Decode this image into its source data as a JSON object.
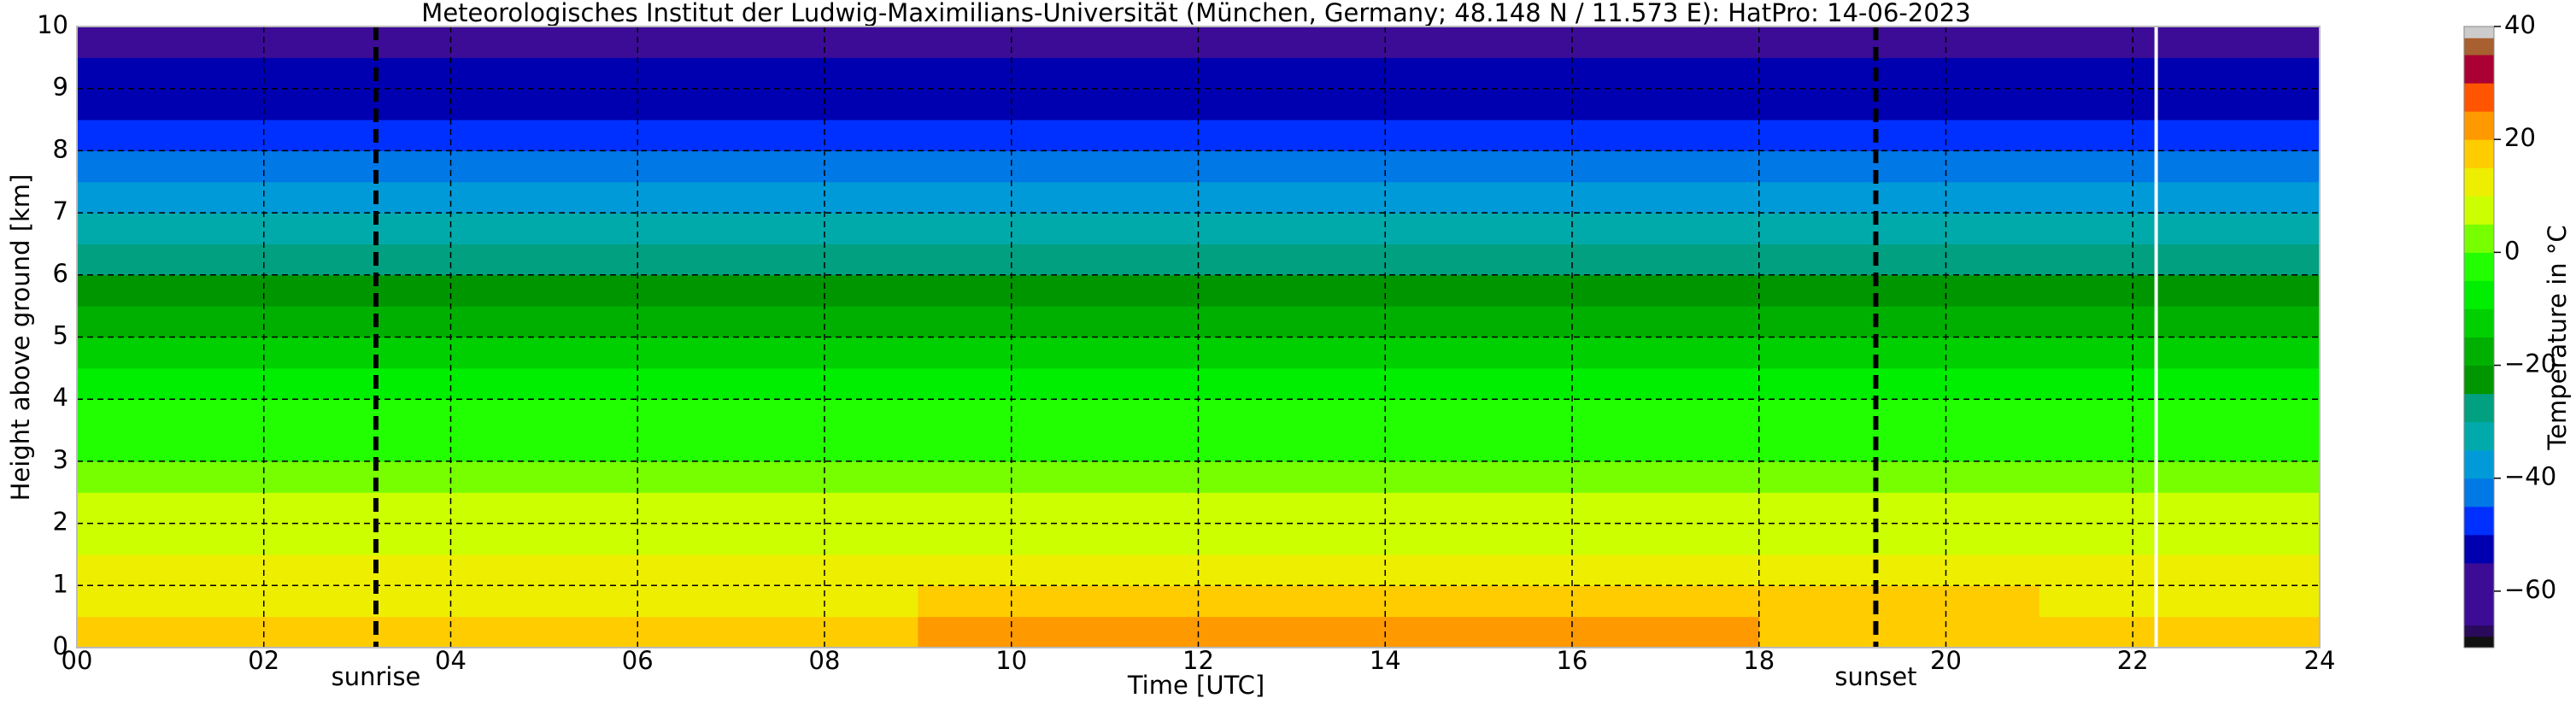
{
  "chart_data": {
    "type": "heatmap",
    "title": "Meteorologisches Institut der Ludwig-Maximilians-Universität (München, Germany; 48.148 N / 11.573 E):    HatPro: 14-06-2023",
    "x_label": "Time [UTC]",
    "y_label": "Height above ground [km]",
    "colorbar_label": "Temperature in °C",
    "x_edges": [
      0,
      3,
      6,
      9,
      12,
      15,
      18,
      21,
      24
    ],
    "y_edges": [
      0,
      0.5,
      1,
      1.5,
      2,
      2.5,
      3,
      3.5,
      4,
      4.5,
      5,
      5.5,
      6,
      6.5,
      7,
      7.5,
      8,
      8.5,
      9,
      9.5,
      10
    ],
    "values": [
      [
        15,
        15,
        17,
        20,
        21,
        21,
        18,
        16
      ],
      [
        13,
        13,
        14,
        15,
        16,
        16,
        15,
        14
      ],
      [
        10,
        10,
        11,
        12,
        12,
        12,
        12,
        11
      ],
      [
        8,
        8,
        8,
        9,
        9,
        9,
        9,
        8
      ],
      [
        5,
        5,
        5,
        6,
        6,
        6,
        6,
        5
      ],
      [
        2,
        2,
        2,
        3,
        3,
        3,
        3,
        2
      ],
      [
        -1,
        -1,
        -1,
        -1,
        -1,
        -1,
        -1,
        -1
      ],
      [
        -5,
        -5,
        -5,
        -5,
        -5,
        -5,
        -5,
        -5
      ],
      [
        -9,
        -9,
        -9,
        -9,
        -9,
        -9,
        -9,
        -9
      ],
      [
        -13,
        -13,
        -13,
        -13,
        -13,
        -13,
        -13,
        -13
      ],
      [
        -17,
        -17,
        -17,
        -18,
        -18,
        -18,
        -17,
        -17
      ],
      [
        -21,
        -21,
        -22,
        -22,
        -22,
        -22,
        -21,
        -21
      ],
      [
        -26,
        -26,
        -26,
        -27,
        -27,
        -27,
        -26,
        -26
      ],
      [
        -31,
        -31,
        -31,
        -31,
        -31,
        -31,
        -31,
        -31
      ],
      [
        -36,
        -36,
        -36,
        -36,
        -36,
        -36,
        -36,
        -36
      ],
      [
        -41,
        -41,
        -41,
        -41,
        -41,
        -41,
        -41,
        -41
      ],
      [
        -46,
        -46,
        -46,
        -46,
        -46,
        -46,
        -46,
        -46
      ],
      [
        -51,
        -51,
        -51,
        -51,
        -51,
        -51,
        -51,
        -51
      ],
      [
        -54,
        -54,
        -54,
        -54,
        -54,
        -54,
        -54,
        -54
      ],
      [
        -57,
        -57,
        -57,
        -57,
        -57,
        -57,
        -57,
        -57
      ]
    ],
    "colorscale": [
      [
        -70,
        "#111111"
      ],
      [
        -68,
        "#2a0a5a"
      ],
      [
        -66,
        "#3c0c96"
      ],
      [
        -55,
        "#0000b0"
      ],
      [
        -50,
        "#0030ff"
      ],
      [
        -45,
        "#0078e6"
      ],
      [
        -40,
        "#009ad8"
      ],
      [
        -35,
        "#00aaaa"
      ],
      [
        -30,
        "#00a080"
      ],
      [
        -25,
        "#009600"
      ],
      [
        -20,
        "#00b000"
      ],
      [
        -15,
        "#00d000"
      ],
      [
        -10,
        "#00ee00"
      ],
      [
        -5,
        "#22ff00"
      ],
      [
        0,
        "#77ff00"
      ],
      [
        5,
        "#ccff00"
      ],
      [
        10,
        "#eeee00"
      ],
      [
        15,
        "#ffcc00"
      ],
      [
        20,
        "#ff9900"
      ],
      [
        25,
        "#ff5500"
      ],
      [
        30,
        "#aa0033"
      ],
      [
        35,
        "#a86030"
      ],
      [
        38,
        "#cccccc"
      ]
    ],
    "clim": [
      -70,
      40
    ],
    "xlim": [
      0,
      24
    ],
    "ylim": [
      0,
      10
    ],
    "xticks": [
      {
        "value": 0,
        "label": "00"
      },
      {
        "value": 2,
        "label": "02"
      },
      {
        "value": 4,
        "label": "04"
      },
      {
        "value": 6,
        "label": "06"
      },
      {
        "value": 8,
        "label": "08"
      },
      10,
      12,
      14,
      16,
      18,
      20,
      22,
      24
    ],
    "yticks": [
      0,
      1,
      2,
      3,
      4,
      5,
      6,
      7,
      8,
      9,
      10
    ],
    "cticks": [
      {
        "value": -60,
        "label": "−60"
      },
      {
        "value": -40,
        "label": "−40"
      },
      {
        "value": -20,
        "label": "−20"
      },
      0,
      20,
      40
    ],
    "grid": true,
    "vlines": [
      {
        "x": 3.2,
        "label": "sunrise",
        "color": "#000000",
        "style": "dashed"
      },
      {
        "x": 19.25,
        "label": "sunset",
        "color": "#000000",
        "style": "dashed"
      },
      {
        "x": 22.25,
        "color": "#ffffff",
        "style": "solid"
      }
    ]
  }
}
